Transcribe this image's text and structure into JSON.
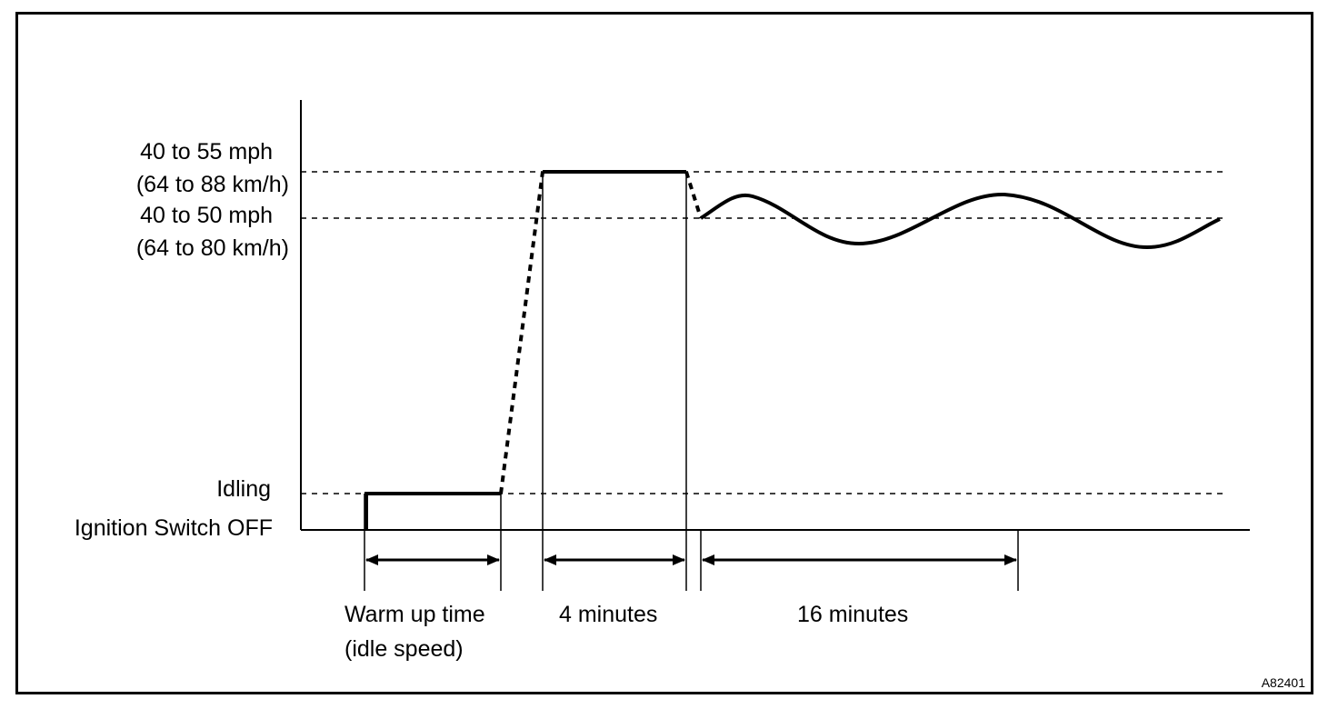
{
  "levels": {
    "high_mph": "40 to 55 mph",
    "high_kmh": "(64 to 88 km/h)",
    "mid_mph": "40 to 50 mph",
    "mid_kmh": "(64 to 80 km/h)",
    "idling": "Idling",
    "ignition_off": "Ignition Switch OFF"
  },
  "phases": [
    {
      "line1": "Warm up time",
      "line2": "(idle speed)"
    },
    {
      "line1": "4 minutes",
      "line2": ""
    },
    {
      "line1": "16 minutes",
      "line2": ""
    }
  ],
  "figure_code": "A82401",
  "colors": {
    "line": "#000000",
    "background": "#ffffff"
  }
}
